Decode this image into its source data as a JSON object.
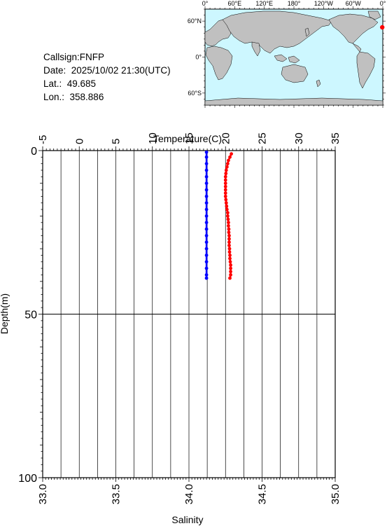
{
  "info": {
    "callsign": "Callsign:FNFP",
    "date": "Date:  2025/10/02 21:30(UTC)",
    "lat": "Lat.:  49.685",
    "lon": "Lon.:  358.886"
  },
  "map": {
    "lon_labels": [
      "0°",
      "60°E",
      "120°E",
      "180°",
      "120°W",
      "60°W",
      "0°"
    ],
    "lat_labels": [
      "60°N",
      "0°",
      "60°S"
    ],
    "ocean_color": "#cdf7ff",
    "land_color": "#c0c0c0",
    "marker_color": "#ff0000",
    "marker": {
      "lon": 358.886,
      "lat": 49.685
    }
  },
  "chart_data": {
    "type": "line",
    "top_axis": {
      "label": "Temperature(C)",
      "range": [
        -5,
        35
      ],
      "ticks": [
        -5,
        0,
        5,
        10,
        15,
        20,
        25,
        30,
        35
      ]
    },
    "bottom_axis": {
      "label": "Salinity",
      "range": [
        33.0,
        35.0
      ],
      "ticks": [
        "33.0",
        "33.5",
        "34.0",
        "34.5",
        "35.0"
      ]
    },
    "y_axis": {
      "label": "Depth(m)",
      "range": [
        0,
        100
      ],
      "inverted": true,
      "ticks": [
        0,
        50,
        100
      ]
    },
    "grid": true,
    "series": [
      {
        "color": "#ff0000",
        "axis": "temperature",
        "points": [
          [
            20.8,
            1
          ],
          [
            20.6,
            2
          ],
          [
            20.4,
            3
          ],
          [
            20.3,
            4
          ],
          [
            20.2,
            5
          ],
          [
            20.1,
            6
          ],
          [
            20.05,
            7
          ],
          [
            20.0,
            8
          ],
          [
            20.0,
            9
          ],
          [
            20.0,
            10
          ],
          [
            20.0,
            11
          ],
          [
            20.0,
            12
          ],
          [
            20.0,
            13
          ],
          [
            20.0,
            14
          ],
          [
            20.05,
            15
          ],
          [
            20.1,
            16
          ],
          [
            20.15,
            17
          ],
          [
            20.2,
            18
          ],
          [
            20.3,
            19
          ],
          [
            20.3,
            20
          ],
          [
            20.35,
            21
          ],
          [
            20.4,
            22
          ],
          [
            20.4,
            23
          ],
          [
            20.45,
            24
          ],
          [
            20.45,
            25
          ],
          [
            20.5,
            26
          ],
          [
            20.5,
            27
          ],
          [
            20.5,
            28
          ],
          [
            20.5,
            29
          ],
          [
            20.55,
            30
          ],
          [
            20.55,
            31
          ],
          [
            20.6,
            32
          ],
          [
            20.6,
            33
          ],
          [
            20.65,
            34
          ],
          [
            20.7,
            35
          ],
          [
            20.7,
            36
          ],
          [
            20.7,
            37
          ],
          [
            20.7,
            38
          ],
          [
            20.6,
            39
          ]
        ]
      },
      {
        "color": "#0000ff",
        "axis": "salinity",
        "points": [
          [
            34.12,
            0.5
          ],
          [
            34.12,
            2
          ],
          [
            34.12,
            4
          ],
          [
            34.12,
            6
          ],
          [
            34.12,
            8
          ],
          [
            34.12,
            10
          ],
          [
            34.12,
            12
          ],
          [
            34.12,
            14
          ],
          [
            34.12,
            16
          ],
          [
            34.12,
            18
          ],
          [
            34.12,
            20
          ],
          [
            34.12,
            22
          ],
          [
            34.12,
            24
          ],
          [
            34.12,
            26
          ],
          [
            34.12,
            28
          ],
          [
            34.12,
            30
          ],
          [
            34.12,
            32
          ],
          [
            34.12,
            34
          ],
          [
            34.12,
            36
          ],
          [
            34.12,
            38
          ],
          [
            34.12,
            39
          ]
        ]
      }
    ]
  }
}
